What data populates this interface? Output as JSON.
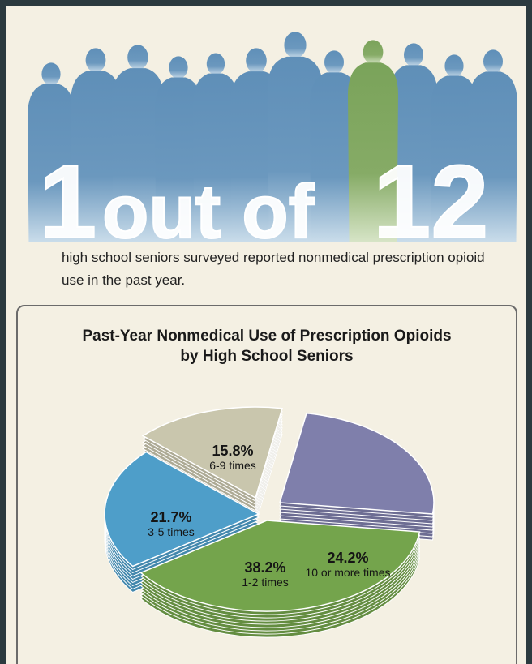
{
  "headline": {
    "number_a": "1",
    "words": "out of",
    "number_b": "12"
  },
  "intro_text": "high school seniors surveyed reported nonmedical prescription opioid use in the past year.",
  "chart_data": {
    "type": "pie",
    "title_line1": "Past-Year Nonmedical Use of Prescription Opioids",
    "title_line2": "by High School Seniors",
    "slices": [
      {
        "percent_label": "24.2%",
        "label": "10 or more times",
        "value": 24.2,
        "color": "#7f7fab"
      },
      {
        "percent_label": "38.2%",
        "label": "1-2 times",
        "value": 38.2,
        "color": "#74a44c"
      },
      {
        "percent_label": "21.7%",
        "label": "3-5 times",
        "value": 21.7,
        "color": "#4e9ec9"
      },
      {
        "percent_label": "15.8%",
        "label": "6-9 times",
        "value": 15.8,
        "color": "#c9c6ad"
      }
    ]
  },
  "colors": {
    "silhouette": "#6693b9",
    "highlight": "#7fa35e",
    "background": "#f4f0e3"
  }
}
